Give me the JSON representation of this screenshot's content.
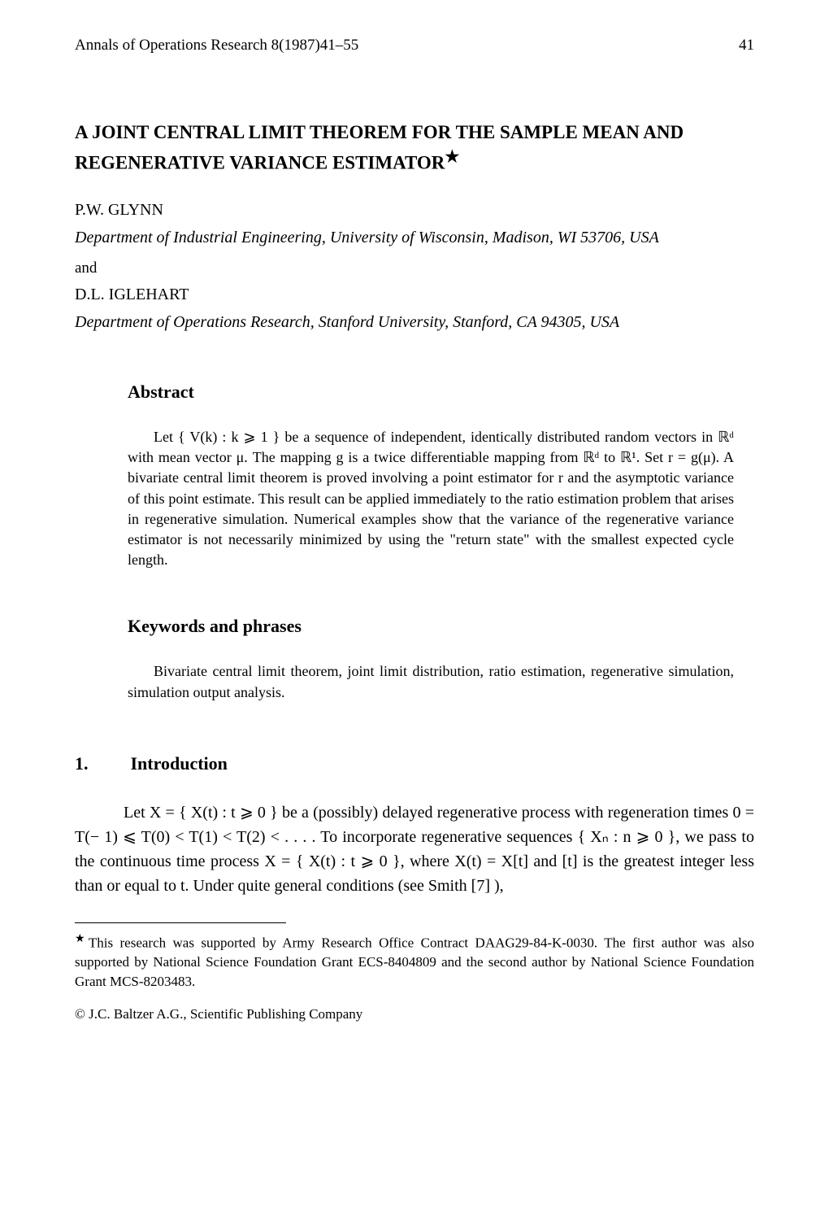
{
  "header": {
    "journal": "Annals of Operations Research 8(1987)41–55",
    "page": "41"
  },
  "title": "A JOINT CENTRAL LIMIT THEOREM FOR THE SAMPLE MEAN AND REGENERATIVE VARIANCE ESTIMATOR",
  "title_star": "★",
  "author1": {
    "name": "P.W. GLYNN",
    "affiliation": "Department of Industrial Engineering, University of Wisconsin, Madison, WI 53706, USA"
  },
  "and": "and",
  "author2": {
    "name": "D.L. IGLEHART",
    "affiliation": "Department of Operations Research, Stanford University, Stanford, CA 94305, USA"
  },
  "abstract": {
    "heading": "Abstract",
    "text": "Let { V(k) : k ⩾ 1 } be a sequence of independent, identically distributed random vectors in ℝᵈ with mean vector μ. The mapping g is a twice differentiable mapping from ℝᵈ to ℝ¹. Set r = g(μ). A bivariate central limit theorem is proved involving a point estimator for r and the asymptotic variance of this point estimate. This result can be applied immediately to the ratio estimation problem that arises in regenerative simulation. Numerical examples show that the variance of the regenerative variance estimator is not necessarily minimized by using the \"return state\" with the smallest expected cycle length."
  },
  "keywords": {
    "heading": "Keywords and phrases",
    "text": "Bivariate central limit theorem, joint limit distribution, ratio estimation, regenerative simulation, simulation output analysis."
  },
  "section1": {
    "num": "1.",
    "title": "Introduction",
    "text": "Let X = { X(t) : t ⩾ 0 } be a (possibly) delayed regenerative process with regeneration times 0 = T(− 1) ⩽ T(0) < T(1) < T(2) < . . . . To incorporate regenerative sequences { Xₙ : n ⩾ 0 }, we pass to the continuous time process X = { X(t) : t ⩾ 0 }, where X(t) = X[t] and [t] is the greatest integer less than or equal to t. Under quite general conditions (see Smith [7] ),"
  },
  "footnote": {
    "star": "★",
    "text": "This research was supported by Army Research Office Contract DAAG29-84-K-0030. The first author was also supported by National Science Foundation Grant ECS-8404809 and the second author by National Science Foundation Grant MCS-8203483."
  },
  "publisher": "© J.C. Baltzer A.G., Scientific Publishing Company",
  "style": {
    "background": "#ffffff",
    "text_color": "#000000",
    "body_font": "Times New Roman",
    "title_fontsize": 23,
    "body_fontsize": 20,
    "abstract_fontsize": 18,
    "footnote_fontsize": 17
  }
}
